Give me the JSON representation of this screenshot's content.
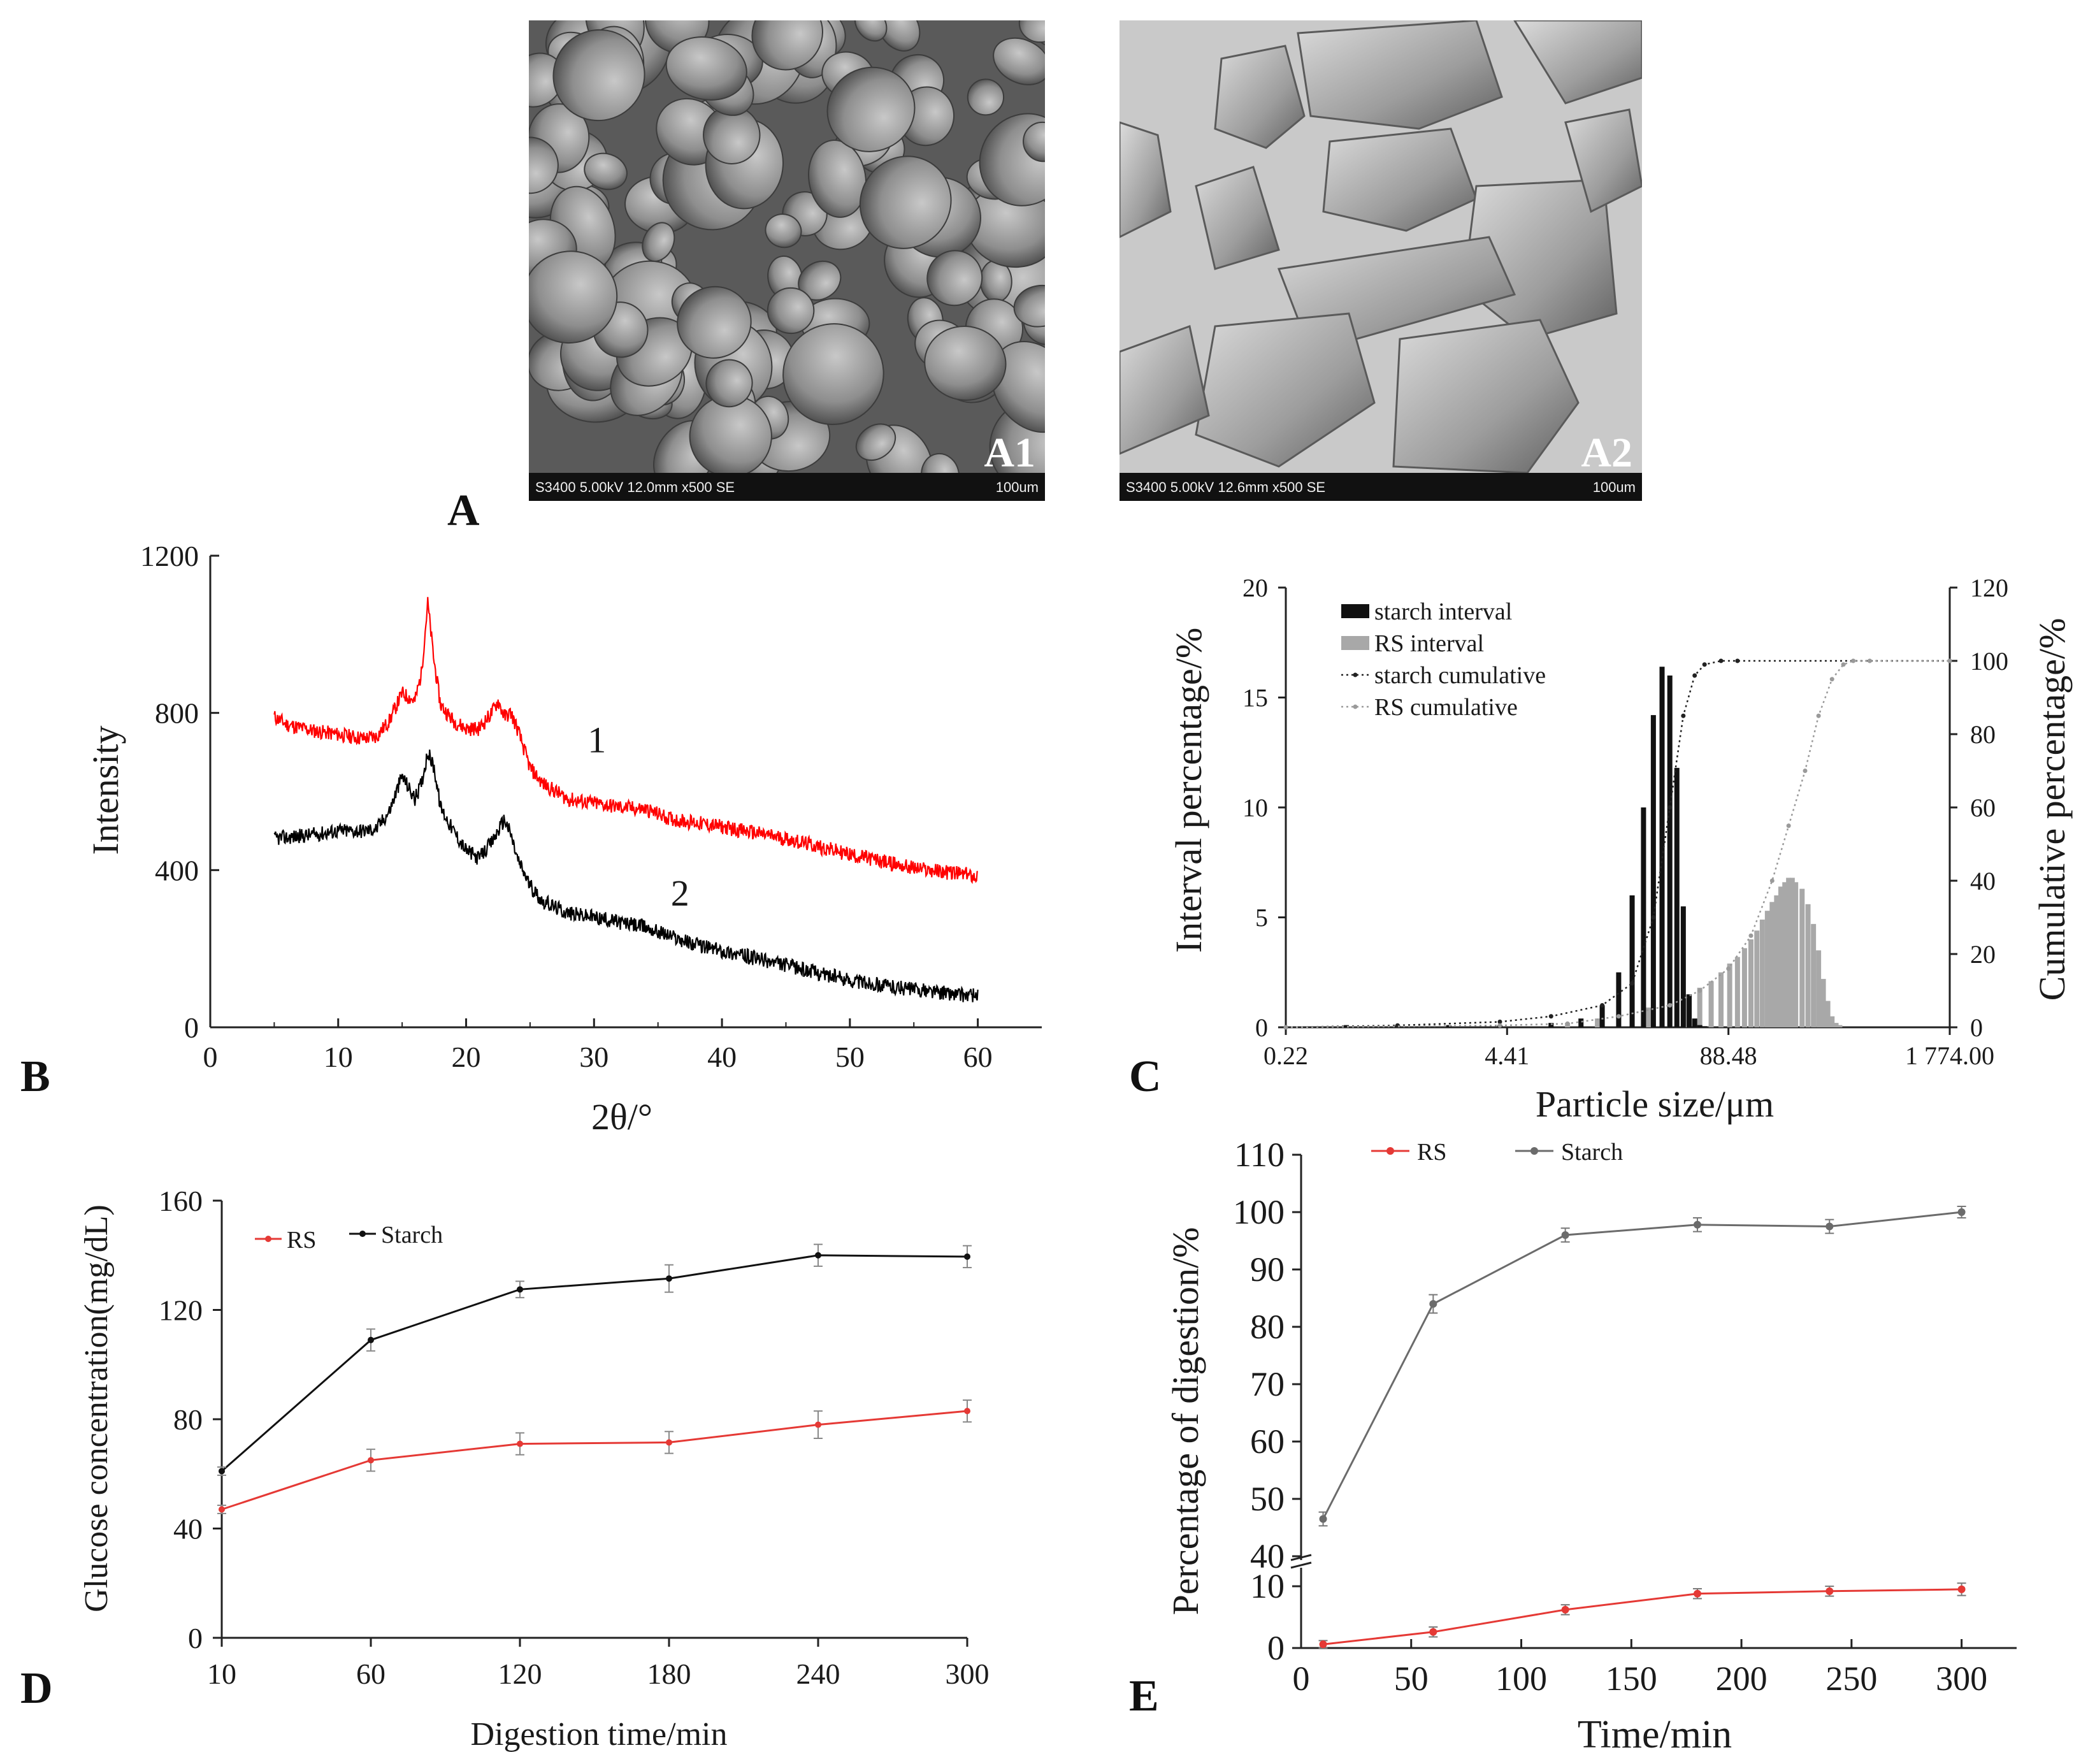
{
  "panels": {
    "A": {
      "letter": "A",
      "images": [
        {
          "label": "A1",
          "info_bar": "S3400 5.00kV 12.0mm x500 SE",
          "scale": "100um",
          "icon": "sem-micrograph-granules"
        },
        {
          "label": "A2",
          "info_bar": "S3400 5.00kV 12.6mm x500 SE",
          "scale": "100um",
          "icon": "sem-micrograph-fragments"
        }
      ]
    },
    "B": {
      "letter": "B"
    },
    "C": {
      "letter": "C"
    },
    "D": {
      "letter": "D"
    },
    "E": {
      "letter": "E"
    }
  },
  "chart_data": [
    {
      "id": "B",
      "type": "line",
      "xlabel": "2θ/°",
      "ylabel": "Intensity",
      "xlim": [
        0,
        65
      ],
      "ylim": [
        0,
        1200
      ],
      "xticks": [
        0,
        10,
        20,
        30,
        40,
        50,
        60
      ],
      "yticks": [
        0,
        400,
        800,
        1200
      ],
      "series": [
        {
          "name": "1",
          "color": "#ff0000",
          "x": [
            5,
            6,
            8,
            10,
            12,
            13,
            14,
            15,
            16,
            16.5,
            17,
            17.5,
            18,
            19,
            20,
            21,
            22,
            22.5,
            23,
            23.5,
            24,
            25,
            26,
            28,
            30,
            32,
            34,
            36,
            38,
            40,
            45,
            50,
            55,
            60
          ],
          "y": [
            790,
            770,
            755,
            745,
            735,
            740,
            780,
            850,
            830,
            900,
            1080,
            930,
            820,
            780,
            760,
            760,
            800,
            830,
            790,
            800,
            760,
            660,
            620,
            580,
            570,
            560,
            555,
            530,
            520,
            510,
            480,
            440,
            405,
            385
          ]
        },
        {
          "name": "2",
          "color": "#000000",
          "x": [
            5,
            8,
            10,
            12,
            13,
            14,
            15,
            15.5,
            16,
            16.5,
            17,
            17.5,
            18,
            19,
            20,
            21,
            22,
            23,
            23.5,
            24,
            25,
            26,
            28,
            30,
            34,
            38,
            42,
            46,
            50,
            54,
            58,
            60
          ],
          "y": [
            480,
            490,
            500,
            500,
            505,
            550,
            640,
            610,
            580,
            620,
            700,
            660,
            560,
            500,
            450,
            430,
            470,
            530,
            490,
            430,
            360,
            320,
            290,
            280,
            255,
            210,
            180,
            150,
            120,
            100,
            85,
            80
          ]
        }
      ],
      "annotations": [
        "1",
        "2"
      ]
    },
    {
      "id": "C",
      "type": "bar",
      "xlabel": "Particle size/μm",
      "ylabel": "Interval percentage/%",
      "y2label": "Cumulative percentage/%",
      "xticks": [
        "0.22",
        "4.41",
        "88.48",
        "1 774.00"
      ],
      "xscale": "log",
      "xlim": [
        0.22,
        1774.0
      ],
      "ylim": [
        0,
        20
      ],
      "yticks": [
        0,
        5,
        10,
        15,
        20
      ],
      "y2lim": [
        0,
        120
      ],
      "y2ticks": [
        0,
        20,
        40,
        60,
        80,
        100,
        120
      ],
      "legend": [
        "starch interval",
        "RS interval",
        "starch cumulative",
        "RS cumulative"
      ],
      "starch_interval": {
        "x": [
          0.5,
          1.0,
          2.0,
          4.0,
          8.0,
          12.0,
          16.0,
          20.0,
          24.0,
          28.0,
          32.0,
          36.0,
          40.0,
          44.0,
          48.0,
          52.0,
          56.0,
          60.0,
          64.0
        ],
        "y": [
          0.1,
          0.1,
          0.1,
          0.1,
          0.2,
          0.4,
          1.0,
          2.5,
          6.0,
          10.0,
          14.2,
          16.4,
          16.0,
          11.8,
          5.5,
          1.5,
          0.4,
          0.1,
          0.05
        ]
      },
      "rs_interval": {
        "x": [
          10,
          15,
          20,
          30,
          40,
          50,
          60,
          70,
          80,
          90,
          100,
          110,
          120,
          130,
          140,
          150,
          160,
          170,
          180,
          190,
          200,
          210,
          220,
          240,
          260,
          280,
          300,
          320,
          340,
          360,
          380,
          400
        ],
        "y": [
          0.2,
          0.4,
          0.6,
          0.9,
          1.2,
          1.5,
          1.8,
          2.1,
          2.5,
          2.9,
          3.2,
          3.6,
          4.0,
          4.4,
          4.9,
          5.3,
          5.7,
          6.0,
          6.4,
          6.6,
          6.8,
          6.8,
          6.6,
          6.3,
          5.6,
          4.7,
          3.5,
          2.2,
          1.2,
          0.5,
          0.2,
          0.1
        ]
      },
      "starch_cumulative": {
        "x": [
          0.22,
          1,
          4,
          8,
          16,
          24,
          32,
          40,
          48,
          56,
          64,
          80,
          100,
          1774
        ],
        "y": [
          0,
          0.5,
          1.5,
          3,
          6,
          12,
          30,
          60,
          85,
          96,
          99,
          100,
          100,
          100
        ]
      },
      "rs_cumulative": {
        "x": [
          0.22,
          4,
          10,
          20,
          40,
          60,
          88.48,
          120,
          160,
          200,
          250,
          300,
          360,
          420,
          480,
          600,
          1774
        ],
        "y": [
          0,
          0.5,
          1,
          3,
          6,
          10,
          16,
          25,
          40,
          55,
          70,
          85,
          95,
          99,
          100,
          100,
          100
        ]
      }
    },
    {
      "id": "D",
      "type": "line",
      "xlabel": "Digestion time/min",
      "ylabel": "Glucose concentration(mg/dL)",
      "categories": [
        10,
        60,
        120,
        180,
        240,
        300
      ],
      "ylim": [
        0,
        160
      ],
      "yticks": [
        0,
        40,
        80,
        120,
        160
      ],
      "legend_placement": "top-left",
      "series": [
        {
          "name": "RS",
          "color": "#e53935",
          "values": [
            47,
            65,
            71,
            71.5,
            78,
            83
          ],
          "errors": [
            1.5,
            4,
            4,
            4,
            5,
            4
          ]
        },
        {
          "name": "Starch",
          "color": "#111111",
          "values": [
            61,
            109,
            127.5,
            131.5,
            140,
            139.5
          ],
          "errors": [
            1.5,
            4,
            3,
            5,
            4,
            4
          ]
        }
      ]
    },
    {
      "id": "E",
      "type": "line",
      "xlabel": "Time/min",
      "ylabel": "Percentage of digestion/%",
      "x": [
        10,
        60,
        120,
        180,
        240,
        300
      ],
      "xlim": [
        0,
        325
      ],
      "xticks": [
        0,
        50,
        100,
        150,
        200,
        250,
        300
      ],
      "yticks": [
        0,
        10,
        40,
        50,
        60,
        70,
        80,
        90,
        100,
        110
      ],
      "broken_axis": {
        "lower": [
          0,
          13
        ],
        "upper": [
          40,
          110
        ]
      },
      "legend_placement": "top",
      "series": [
        {
          "name": "RS",
          "color": "#e53935",
          "values": [
            0.6,
            2.6,
            6.2,
            8.8,
            9.2,
            9.5
          ],
          "errors": [
            0.6,
            0.8,
            0.8,
            0.8,
            0.8,
            1.0
          ]
        },
        {
          "name": "Starch",
          "color": "#6b6b6b",
          "values": [
            46.5,
            84,
            96,
            97.8,
            97.5,
            100
          ],
          "errors": [
            1.2,
            1.6,
            1.2,
            1.2,
            1.2,
            1.0
          ]
        }
      ]
    }
  ]
}
